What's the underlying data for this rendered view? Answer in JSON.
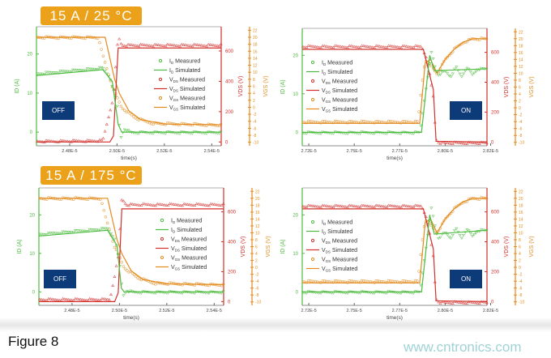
{
  "figure_label": "Figure 8",
  "watermark": "www.cntronics.com",
  "colors": {
    "id": "#4dbb3f",
    "vds": "#d3302c",
    "vgs": "#e38b1e",
    "banner": "#eba21a",
    "state_box": "#0d3a78"
  },
  "banners": [
    "15 A / 25 °C",
    "15 A / 175 °C"
  ],
  "legend": [
    {
      "sym": "I",
      "sub": "D",
      "text": "Measured",
      "series": "id",
      "kind": "marker"
    },
    {
      "sym": "I",
      "sub": "D",
      "text": "Simulated",
      "series": "id",
      "kind": "line"
    },
    {
      "sym": "V",
      "sub": "DS",
      "text": "Measured",
      "series": "vds",
      "kind": "marker"
    },
    {
      "sym": "V",
      "sub": "DS",
      "text": "Simulated",
      "series": "vds",
      "kind": "line"
    },
    {
      "sym": "V",
      "sub": "GS",
      "text": "Measured",
      "series": "vgs",
      "kind": "marker"
    },
    {
      "sym": "V",
      "sub": "GS",
      "text": "Simulated",
      "series": "vgs",
      "kind": "line"
    }
  ],
  "chart_data": [
    {
      "type": "line",
      "panel": "top-left",
      "state": "OFF",
      "xlabel": "time(s)",
      "ylabel_left": "ID (A)",
      "ylabel_right1": "VDS (V)",
      "ylabel_right2": "VGS (V)",
      "xlim": [
        2.466e-05,
        2.544e-05
      ],
      "ylim_id": [
        -3.5,
        27
      ],
      "ylim_vds": [
        -25,
        760
      ],
      "ylim_vgs": [
        -11,
        23
      ],
      "xticks": [
        {
          "v": 2.48e-05,
          "l": "2.48E-5"
        },
        {
          "v": 2.5e-05,
          "l": "2.50E-5"
        },
        {
          "v": 2.52e-05,
          "l": "2.52E-5"
        },
        {
          "v": 2.54e-05,
          "l": "2.54E-5"
        }
      ],
      "id_ticks": [
        0,
        10,
        20
      ],
      "vds_ticks": [
        0,
        200,
        400,
        600
      ],
      "vgs_ticks": [
        -10,
        -8,
        -6,
        -4,
        -2,
        0,
        2,
        4,
        6,
        8,
        10,
        12,
        14,
        16,
        18,
        20,
        22
      ],
      "series": {
        "id_meas": [
          [
            2.466e-05,
            15
          ],
          [
            2.494e-05,
            16.5
          ],
          [
            2.497e-05,
            14
          ],
          [
            2.5e-05,
            8
          ],
          [
            2.5015e-05,
            -1.5
          ],
          [
            2.503e-05,
            1
          ],
          [
            2.506e-05,
            0
          ],
          [
            2.544e-05,
            0
          ]
        ],
        "id_sim": [
          [
            2.466e-05,
            14.5
          ],
          [
            2.494e-05,
            16
          ],
          [
            2.498e-05,
            13
          ],
          [
            2.5005e-05,
            2
          ],
          [
            2.502e-05,
            0
          ],
          [
            2.544e-05,
            0
          ]
        ],
        "vds_meas": [
          [
            2.466e-05,
            5
          ],
          [
            2.494e-05,
            10
          ],
          [
            2.4985e-05,
            300
          ],
          [
            2.5005e-05,
            700
          ],
          [
            2.502e-05,
            640
          ],
          [
            2.544e-05,
            640
          ]
        ],
        "vds_sim": [
          [
            2.466e-05,
            0
          ],
          [
            2.497e-05,
            0
          ],
          [
            2.4985e-05,
            40
          ],
          [
            2.5005e-05,
            620
          ],
          [
            2.544e-05,
            620
          ]
        ],
        "vgs_meas": [
          [
            2.466e-05,
            20
          ],
          [
            2.492e-05,
            20
          ],
          [
            2.494e-05,
            15
          ],
          [
            2.498e-05,
            6
          ],
          [
            2.502e-05,
            0
          ],
          [
            2.508e-05,
            -3
          ],
          [
            2.515e-05,
            -4.5
          ],
          [
            2.544e-05,
            -5
          ]
        ],
        "vgs_sim": [
          [
            2.466e-05,
            20
          ],
          [
            2.495e-05,
            20
          ],
          [
            2.499e-05,
            8
          ],
          [
            2.501e-05,
            4
          ],
          [
            2.505e-05,
            -1
          ],
          [
            2.51e-05,
            -3.5
          ],
          [
            2.52e-05,
            -4.8
          ],
          [
            2.544e-05,
            -5
          ]
        ]
      }
    },
    {
      "type": "line",
      "panel": "top-right",
      "state": "ON",
      "xlabel": "time(s)",
      "ylabel_left": "ID (A)",
      "ylabel_right1": "VDS (V)",
      "ylabel_right2": "VGS (V)",
      "xlim": [
        2.7214e-05,
        2.823e-05
      ],
      "ylim_id": [
        -3.5,
        27
      ],
      "ylim_vds": [
        -25,
        760
      ],
      "ylim_vgs": [
        -11,
        23
      ],
      "xticks": [
        {
          "v": 2.725e-05,
          "l": "2.72E-5"
        },
        {
          "v": 2.75e-05,
          "l": "2.75E-5"
        },
        {
          "v": 2.775e-05,
          "l": "2.77E-5"
        },
        {
          "v": 2.8e-05,
          "l": "2.80E-5"
        },
        {
          "v": 2.825e-05,
          "l": "2.82E-5"
        }
      ],
      "id_ticks": [
        0,
        10,
        20
      ],
      "vds_ticks": [
        0,
        200,
        400,
        600
      ],
      "vgs_ticks": [
        -10,
        -8,
        -6,
        -4,
        -2,
        0,
        2,
        4,
        6,
        8,
        10,
        12,
        14,
        16,
        18,
        20,
        22
      ],
      "series": {
        "id_meas": [
          [
            2.7214e-05,
            0
          ],
          [
            2.786e-05,
            0
          ],
          [
            2.789e-05,
            10
          ],
          [
            2.7925e-05,
            21
          ],
          [
            2.7945e-05,
            17
          ],
          [
            2.796e-05,
            15
          ],
          [
            2.8e-05,
            16
          ],
          [
            2.803e-05,
            14.5
          ],
          [
            2.806e-05,
            17
          ],
          [
            2.809e-05,
            14.5
          ],
          [
            2.812e-05,
            17
          ],
          [
            2.815e-05,
            15
          ],
          [
            2.818e-05,
            16.5
          ],
          [
            2.823e-05,
            16.5
          ]
        ],
        "id_sim": [
          [
            2.7214e-05,
            0
          ],
          [
            2.787e-05,
            0
          ],
          [
            2.7915e-05,
            20
          ],
          [
            2.794e-05,
            16
          ],
          [
            2.823e-05,
            16.5
          ]
        ],
        "vds_meas": [
          [
            2.7214e-05,
            640
          ],
          [
            2.787e-05,
            640
          ],
          [
            2.79e-05,
            560
          ],
          [
            2.7935e-05,
            300
          ],
          [
            2.795e-05,
            20
          ],
          [
            2.797e-05,
            -5
          ],
          [
            2.823e-05,
            -5
          ]
        ],
        "vds_sim": [
          [
            2.7214e-05,
            620
          ],
          [
            2.788e-05,
            620
          ],
          [
            2.7935e-05,
            350
          ],
          [
            2.795e-05,
            5
          ],
          [
            2.823e-05,
            0
          ]
        ],
        "vgs_meas": [
          [
            2.7214e-05,
            -4
          ],
          [
            2.785e-05,
            -4
          ],
          [
            2.787e-05,
            6
          ],
          [
            2.789e-05,
            14
          ],
          [
            2.791e-05,
            13
          ],
          [
            2.7955e-05,
            10
          ],
          [
            2.8e-05,
            14
          ],
          [
            2.805e-05,
            17
          ],
          [
            2.81e-05,
            19
          ],
          [
            2.815e-05,
            20
          ],
          [
            2.823e-05,
            20
          ]
        ],
        "vgs_sim": [
          [
            2.7214e-05,
            -4.5
          ],
          [
            2.786e-05,
            -4.5
          ],
          [
            2.789e-05,
            13
          ],
          [
            2.792e-05,
            14
          ],
          [
            2.7955e-05,
            10
          ],
          [
            2.8e-05,
            14
          ],
          [
            2.805e-05,
            17
          ],
          [
            2.81e-05,
            19
          ],
          [
            2.815e-05,
            20
          ],
          [
            2.823e-05,
            20
          ]
        ]
      }
    },
    {
      "type": "line",
      "panel": "bottom-left",
      "state": "OFF",
      "xlabel": "time(s)",
      "ylabel_left": "ID (A)",
      "ylabel_right1": "VDS (V)",
      "ylabel_right2": "VGS (V)",
      "xlim": [
        2.466e-05,
        2.544e-05
      ],
      "ylim_id": [
        -3.5,
        27
      ],
      "ylim_vds": [
        -25,
        760
      ],
      "ylim_vgs": [
        -11,
        23
      ],
      "xticks": [
        {
          "v": 2.48e-05,
          "l": "2.48E-5"
        },
        {
          "v": 2.5e-05,
          "l": "2.50E-5"
        },
        {
          "v": 2.52e-05,
          "l": "2.52E-5"
        },
        {
          "v": 2.54e-05,
          "l": "2.54E-5"
        }
      ],
      "id_ticks": [
        0,
        10,
        20
      ],
      "vds_ticks": [
        0,
        200,
        400,
        600
      ],
      "vgs_ticks": [
        -10,
        -8,
        -6,
        -4,
        -2,
        0,
        2,
        4,
        6,
        8,
        10,
        12,
        14,
        16,
        18,
        20,
        22
      ],
      "series": {
        "id_meas": [
          [
            2.466e-05,
            15
          ],
          [
            2.495e-05,
            16.5
          ],
          [
            2.498e-05,
            14
          ],
          [
            2.5e-05,
            8
          ],
          [
            2.5015e-05,
            -1
          ],
          [
            2.503e-05,
            0.5
          ],
          [
            2.506e-05,
            0
          ],
          [
            2.544e-05,
            0
          ]
        ],
        "id_sim": [
          [
            2.466e-05,
            14.5
          ],
          [
            2.495e-05,
            16
          ],
          [
            2.499e-05,
            12
          ],
          [
            2.5008e-05,
            1
          ],
          [
            2.502e-05,
            0
          ],
          [
            2.544e-05,
            0
          ]
        ],
        "vds_meas": [
          [
            2.466e-05,
            15
          ],
          [
            2.496e-05,
            15
          ],
          [
            2.4995e-05,
            300
          ],
          [
            2.501e-05,
            690
          ],
          [
            2.503e-05,
            650
          ],
          [
            2.544e-05,
            650
          ]
        ],
        "vds_sim": [
          [
            2.466e-05,
            0
          ],
          [
            2.498e-05,
            0
          ],
          [
            2.4995e-05,
            60
          ],
          [
            2.501e-05,
            620
          ],
          [
            2.544e-05,
            620
          ]
        ],
        "vgs_meas": [
          [
            2.466e-05,
            20
          ],
          [
            2.492e-05,
            20
          ],
          [
            2.494e-05,
            15
          ],
          [
            2.498e-05,
            6
          ],
          [
            2.502e-05,
            0
          ],
          [
            2.508e-05,
            -3
          ],
          [
            2.515e-05,
            -4.5
          ],
          [
            2.544e-05,
            -5
          ]
        ],
        "vgs_sim": [
          [
            2.466e-05,
            20
          ],
          [
            2.495e-05,
            20
          ],
          [
            2.499e-05,
            8
          ],
          [
            2.501e-05,
            4
          ],
          [
            2.505e-05,
            -1
          ],
          [
            2.51e-05,
            -3.5
          ],
          [
            2.52e-05,
            -4.8
          ],
          [
            2.544e-05,
            -5
          ]
        ]
      }
    },
    {
      "type": "line",
      "panel": "bottom-right",
      "state": "ON",
      "xlabel": "time(s)",
      "ylabel_left": "ID (A)",
      "ylabel_right1": "VDS (V)",
      "ylabel_right2": "VGS (V)",
      "xlim": [
        2.7214e-05,
        2.823e-05
      ],
      "ylim_id": [
        -3.5,
        27
      ],
      "ylim_vds": [
        -25,
        760
      ],
      "ylim_vgs": [
        -11,
        23
      ],
      "xticks": [
        {
          "v": 2.725e-05,
          "l": "2.72E-5"
        },
        {
          "v": 2.75e-05,
          "l": "2.75E-5"
        },
        {
          "v": 2.775e-05,
          "l": "2.77E-5"
        },
        {
          "v": 2.8e-05,
          "l": "2.80E-5"
        },
        {
          "v": 2.825e-05,
          "l": "2.82E-5"
        }
      ],
      "id_ticks": [
        0,
        10,
        20
      ],
      "vds_ticks": [
        0,
        200,
        400,
        600
      ],
      "vgs_ticks": [
        -10,
        -8,
        -6,
        -4,
        -2,
        0,
        2,
        4,
        6,
        8,
        10,
        12,
        14,
        16,
        18,
        20,
        22
      ],
      "series": {
        "id_meas": [
          [
            2.7214e-05,
            0
          ],
          [
            2.786e-05,
            0
          ],
          [
            2.789e-05,
            10
          ],
          [
            2.7925e-05,
            22
          ],
          [
            2.7945e-05,
            17
          ],
          [
            2.796e-05,
            14
          ],
          [
            2.8e-05,
            15.5
          ],
          [
            2.803e-05,
            14
          ],
          [
            2.806e-05,
            16.5
          ],
          [
            2.809e-05,
            14
          ],
          [
            2.812e-05,
            16.5
          ],
          [
            2.815e-05,
            14.5
          ],
          [
            2.818e-05,
            16
          ],
          [
            2.823e-05,
            16
          ]
        ],
        "id_sim": [
          [
            2.7214e-05,
            0
          ],
          [
            2.787e-05,
            0
          ],
          [
            2.7915e-05,
            20
          ],
          [
            2.794e-05,
            15
          ],
          [
            2.823e-05,
            16
          ]
        ],
        "vds_meas": [
          [
            2.7214e-05,
            640
          ],
          [
            2.787e-05,
            640
          ],
          [
            2.79e-05,
            560
          ],
          [
            2.7935e-05,
            300
          ],
          [
            2.795e-05,
            20
          ],
          [
            2.797e-05,
            -5
          ],
          [
            2.823e-05,
            -5
          ]
        ],
        "vds_sim": [
          [
            2.7214e-05,
            620
          ],
          [
            2.788e-05,
            620
          ],
          [
            2.7935e-05,
            350
          ],
          [
            2.795e-05,
            5
          ],
          [
            2.823e-05,
            0
          ]
        ],
        "vgs_meas": [
          [
            2.7214e-05,
            -4
          ],
          [
            2.785e-05,
            -4
          ],
          [
            2.787e-05,
            6
          ],
          [
            2.789e-05,
            14
          ],
          [
            2.791e-05,
            13
          ],
          [
            2.7955e-05,
            10
          ],
          [
            2.8e-05,
            14
          ],
          [
            2.805e-05,
            17
          ],
          [
            2.81e-05,
            19
          ],
          [
            2.815e-05,
            20
          ],
          [
            2.823e-05,
            20
          ]
        ],
        "vgs_sim": [
          [
            2.7214e-05,
            -4.5
          ],
          [
            2.786e-05,
            -4.5
          ],
          [
            2.789e-05,
            13
          ],
          [
            2.792e-05,
            14
          ],
          [
            2.7955e-05,
            10
          ],
          [
            2.8e-05,
            14
          ],
          [
            2.805e-05,
            17
          ],
          [
            2.81e-05,
            19
          ],
          [
            2.815e-05,
            20
          ],
          [
            2.823e-05,
            20
          ]
        ]
      }
    }
  ]
}
